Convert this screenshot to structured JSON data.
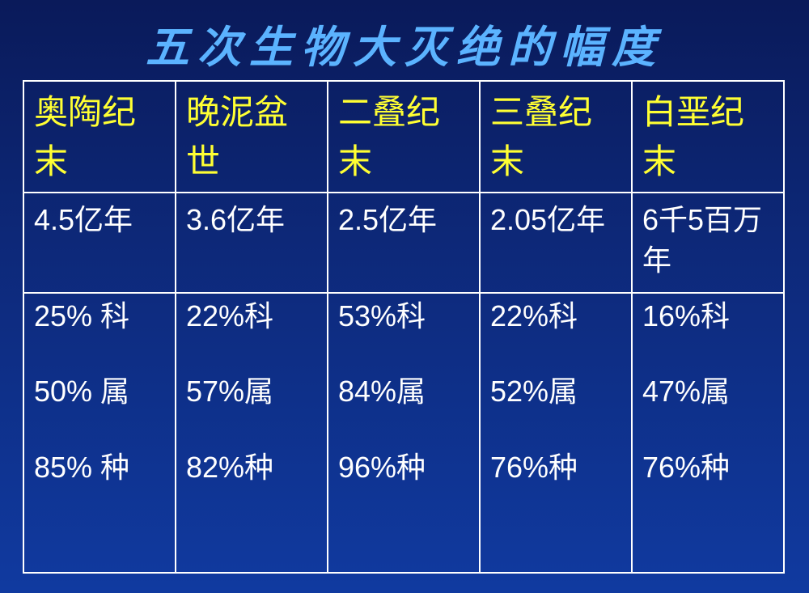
{
  "title": "五次生物大灭绝的幅度",
  "table": {
    "columns": [
      {
        "header": "奥陶纪末",
        "time": "4.5亿年",
        "family": "25% 科",
        "genus": "50% 属",
        "species": "85% 种"
      },
      {
        "header": "晚泥盆世",
        "time": "3.6亿年",
        "family": "22%科",
        "genus": "57%属",
        "species": "82%种"
      },
      {
        "header": "二叠纪末",
        "time": "2.5亿年",
        "family": "53%科",
        "genus": "84%属",
        "species": "96%种"
      },
      {
        "header": "三叠纪末",
        "time": "2.05亿年",
        "family": "22%科",
        "genus": "52%属",
        "species": "76%种"
      },
      {
        "header": "白垩纪末",
        "time": "6千5百万年",
        "family": "16%科",
        "genus": "47%属",
        "species": "76%种"
      }
    ]
  },
  "style": {
    "background_gradient": [
      "#0a1a5a",
      "#0d2878",
      "#103aa0"
    ],
    "title_color": "#5bb3ff",
    "header_text_color": "#ffff33",
    "body_text_color": "#ffffff",
    "border_color": "#ffffff",
    "title_fontsize": 54,
    "header_fontsize": 42,
    "body_fontsize": 36
  }
}
